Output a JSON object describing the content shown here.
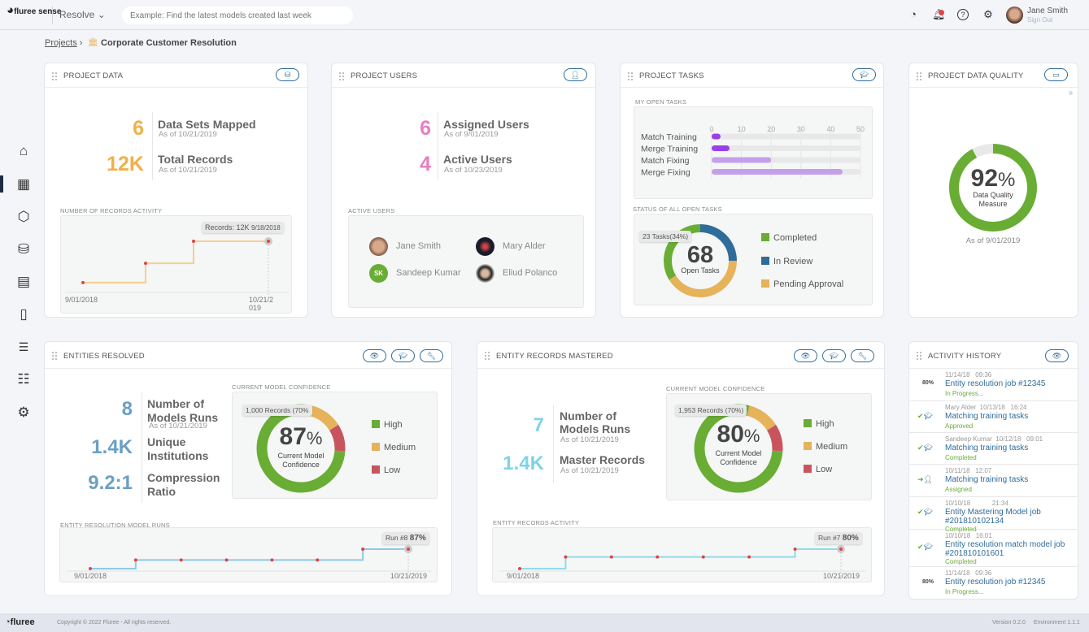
{
  "header": {
    "logo": "fluree sense",
    "app_menu": "Resolve",
    "search_placeholder": "Example: Find the latest models created last week",
    "notifications": "1",
    "user_name": "Jane Smith",
    "sign_out": "Sign Out",
    "icons": [
      "analytics-icon",
      "bell-icon",
      "help-icon",
      "gear-icon"
    ]
  },
  "breadcrumb": {
    "root": "Projects",
    "current": "Corporate Customer Resolution"
  },
  "sidebar": [
    "home-icon",
    "dashboard-icon",
    "cube-icon",
    "database-icon",
    "report-icon",
    "book-icon",
    "tasks-icon",
    "list-icon",
    "settings-icon"
  ],
  "project_data": {
    "title": "PROJECT DATA",
    "stats": [
      {
        "value": "6",
        "label": "Data Sets Mapped",
        "asof": "As of 10/21/2019"
      },
      {
        "value": "12K",
        "label": "Total Records",
        "asof": "As of 10/21/2019"
      }
    ],
    "chart_label": "NUMBER OF RECORDS ACTIVITY",
    "tooltip_value": "Records: 12K",
    "tooltip_date": "9/18/2018",
    "x_start": "9/01/2018",
    "x_end": "10/21/2\n019",
    "accent": "#f0b04a"
  },
  "project_users": {
    "title": "PROJECT USERS",
    "stats": [
      {
        "value": "6",
        "label": "Assigned Users",
        "asof": "As of 9/01/2019"
      },
      {
        "value": "4",
        "label": "Active Users",
        "asof": "As of 10/23/2019"
      }
    ],
    "active_label": "ACTIVE USERS",
    "users": [
      {
        "name": "Jane Smith"
      },
      {
        "name": "Mary Alder"
      },
      {
        "name": "Sandeep Kumar",
        "initials": "SK"
      },
      {
        "name": "Eliud Polanco"
      }
    ],
    "accent": "#e67fc3"
  },
  "project_tasks": {
    "title": "PROJECT TASKS",
    "my_open_label": "MY OPEN TASKS",
    "status_label": "STATUS OF ALL OPEN TASKS",
    "center_value": "68",
    "center_label": "Open Tasks",
    "tooltip": "23 Tasks(34%)"
  },
  "project_quality": {
    "title": "PROJECT DATA QUALITY",
    "value": "92",
    "unit": "%",
    "label": "Data Quality Measure",
    "asof": "As of 9/01/2019"
  },
  "entities_resolved": {
    "title": "ENTITIES RESOLVED",
    "stats": [
      {
        "value": "8",
        "label": "Number of Models Runs",
        "asof": "As of 10/21/2019"
      },
      {
        "value": "1.4K",
        "label": "Unique Institutions"
      },
      {
        "value": "9.2:1",
        "label": "Compression Ratio"
      }
    ],
    "confidence_label": "CURRENT MODEL CONFIDENCE",
    "center_value": "87",
    "unit": "%",
    "center_label": "Current Model Confidence",
    "tooltip": "1,000 Records (70%",
    "runs_label": "ENTITY RESOLUTION MODEL RUNS",
    "run_tip": "Run #8",
    "run_value": "87%",
    "x_start": "9/01/2018",
    "x_end": "10/21/2019",
    "accent": "#6b9fc4"
  },
  "entity_mastered": {
    "title": "ENTITY RECORDS MASTERED",
    "stats": [
      {
        "value": "7",
        "label": "Number of Models Runs",
        "asof": "As of 10/21/2019"
      },
      {
        "value": "1.4K",
        "label": "Master Records",
        "asof": "As of 10/21/2019"
      }
    ],
    "confidence_label": "CURRENT MODEL CONFIDENCE",
    "center_value": "80",
    "unit": "%",
    "center_label": "Current Model Confidence",
    "tooltip": "1,953 Records (70%)",
    "runs_label": "ENTITY RECORDS ACTIVITY",
    "run_tip": "Run #7",
    "run_value": "80%",
    "x_start": "9/01/2018",
    "x_end": "10/21/2019",
    "accent": "#7fd3e6"
  },
  "activity": {
    "title": "ACTIVITY HISTORY",
    "items": [
      {
        "icon": "80%",
        "meta": "11/14/18   09:36",
        "title": "Entity resolution job #12345",
        "status": "In Progress..."
      },
      {
        "icon": "check-training-icon",
        "meta": "Mary Alder  10/13/18   16:24",
        "title": "Matching training tasks",
        "status": "Approved"
      },
      {
        "icon": "check-training-icon",
        "meta": "Sandeep Kumar  10/12/18   09:01",
        "title": "Matching training tasks",
        "status": "Completed"
      },
      {
        "icon": "assign-user-icon",
        "meta": "10/11/18   12:07",
        "title": "Matching training tasks",
        "status": "Assigned"
      },
      {
        "icon": "check-training-icon",
        "meta": "10/10/18            21:34",
        "title": "Entity Mastering Model job #201810102134",
        "status": "Completed"
      },
      {
        "icon": "check-training-icon",
        "meta": "10/10/18   16:01",
        "title": "Entity resolution match model job #201810101601",
        "status": "Completed"
      },
      {
        "icon": "80%",
        "meta": "11/14/18   09:36",
        "title": "Entity resolution job #12345",
        "status": "In Progress..."
      }
    ]
  },
  "footer": {
    "copyright": "Copyright © 2022 Fluree - All rights reserved.",
    "version": "Version 0.2.0",
    "environment": "Environment 1.1.1",
    "logo": "fluree"
  },
  "chart_data": [
    {
      "type": "step",
      "id": "records",
      "values": [
        1.3,
        6.3,
        12,
        12
      ],
      "x_start": "9/01/2018",
      "x_end": "10/21/2019"
    },
    {
      "type": "bar",
      "id": "open_tasks",
      "categories": [
        "Match Training",
        "Merge Training",
        "Match Fixing",
        "Merge Fixing"
      ],
      "values": [
        3,
        6,
        20,
        44
      ],
      "xlim": [
        0,
        50
      ],
      "ticks": [
        "0",
        "10",
        "20",
        "30",
        "40",
        "50"
      ],
      "colors": [
        "#9b3fe6",
        "#9b3fe6",
        "#c5a0ea",
        "#c5a0ea"
      ]
    },
    {
      "type": "pie",
      "id": "task_status",
      "categories": [
        "Completed",
        "In Review",
        "Pending Approval"
      ],
      "values": [
        23,
        17,
        28
      ],
      "colors": [
        "#69ad34",
        "#2f6c9a",
        "#e6b25a"
      ]
    },
    {
      "type": "pie",
      "id": "quality",
      "categories": [
        "Quality",
        "Remaining"
      ],
      "values": [
        92,
        8
      ],
      "colors": [
        "#69ad34",
        "#e8e8e8"
      ]
    },
    {
      "type": "pie",
      "id": "conf_resolved",
      "categories": [
        "High",
        "Medium",
        "Low"
      ],
      "values": [
        78,
        12,
        10
      ],
      "colors": [
        "#69ad34",
        "#e6b25a",
        "#c8545e"
      ]
    },
    {
      "type": "pie",
      "id": "conf_mastered",
      "categories": [
        "High",
        "Medium",
        "Low"
      ],
      "values": [
        78,
        12,
        10
      ],
      "colors": [
        "#69ad34",
        "#e6b25a",
        "#c8545e"
      ]
    },
    {
      "type": "step",
      "id": "runs_resolved",
      "values": [
        60,
        72,
        72,
        72,
        72,
        72,
        87,
        87
      ]
    },
    {
      "type": "step",
      "id": "runs_mastered",
      "values": [
        60,
        72,
        72,
        72,
        72,
        72,
        80,
        80
      ]
    }
  ]
}
